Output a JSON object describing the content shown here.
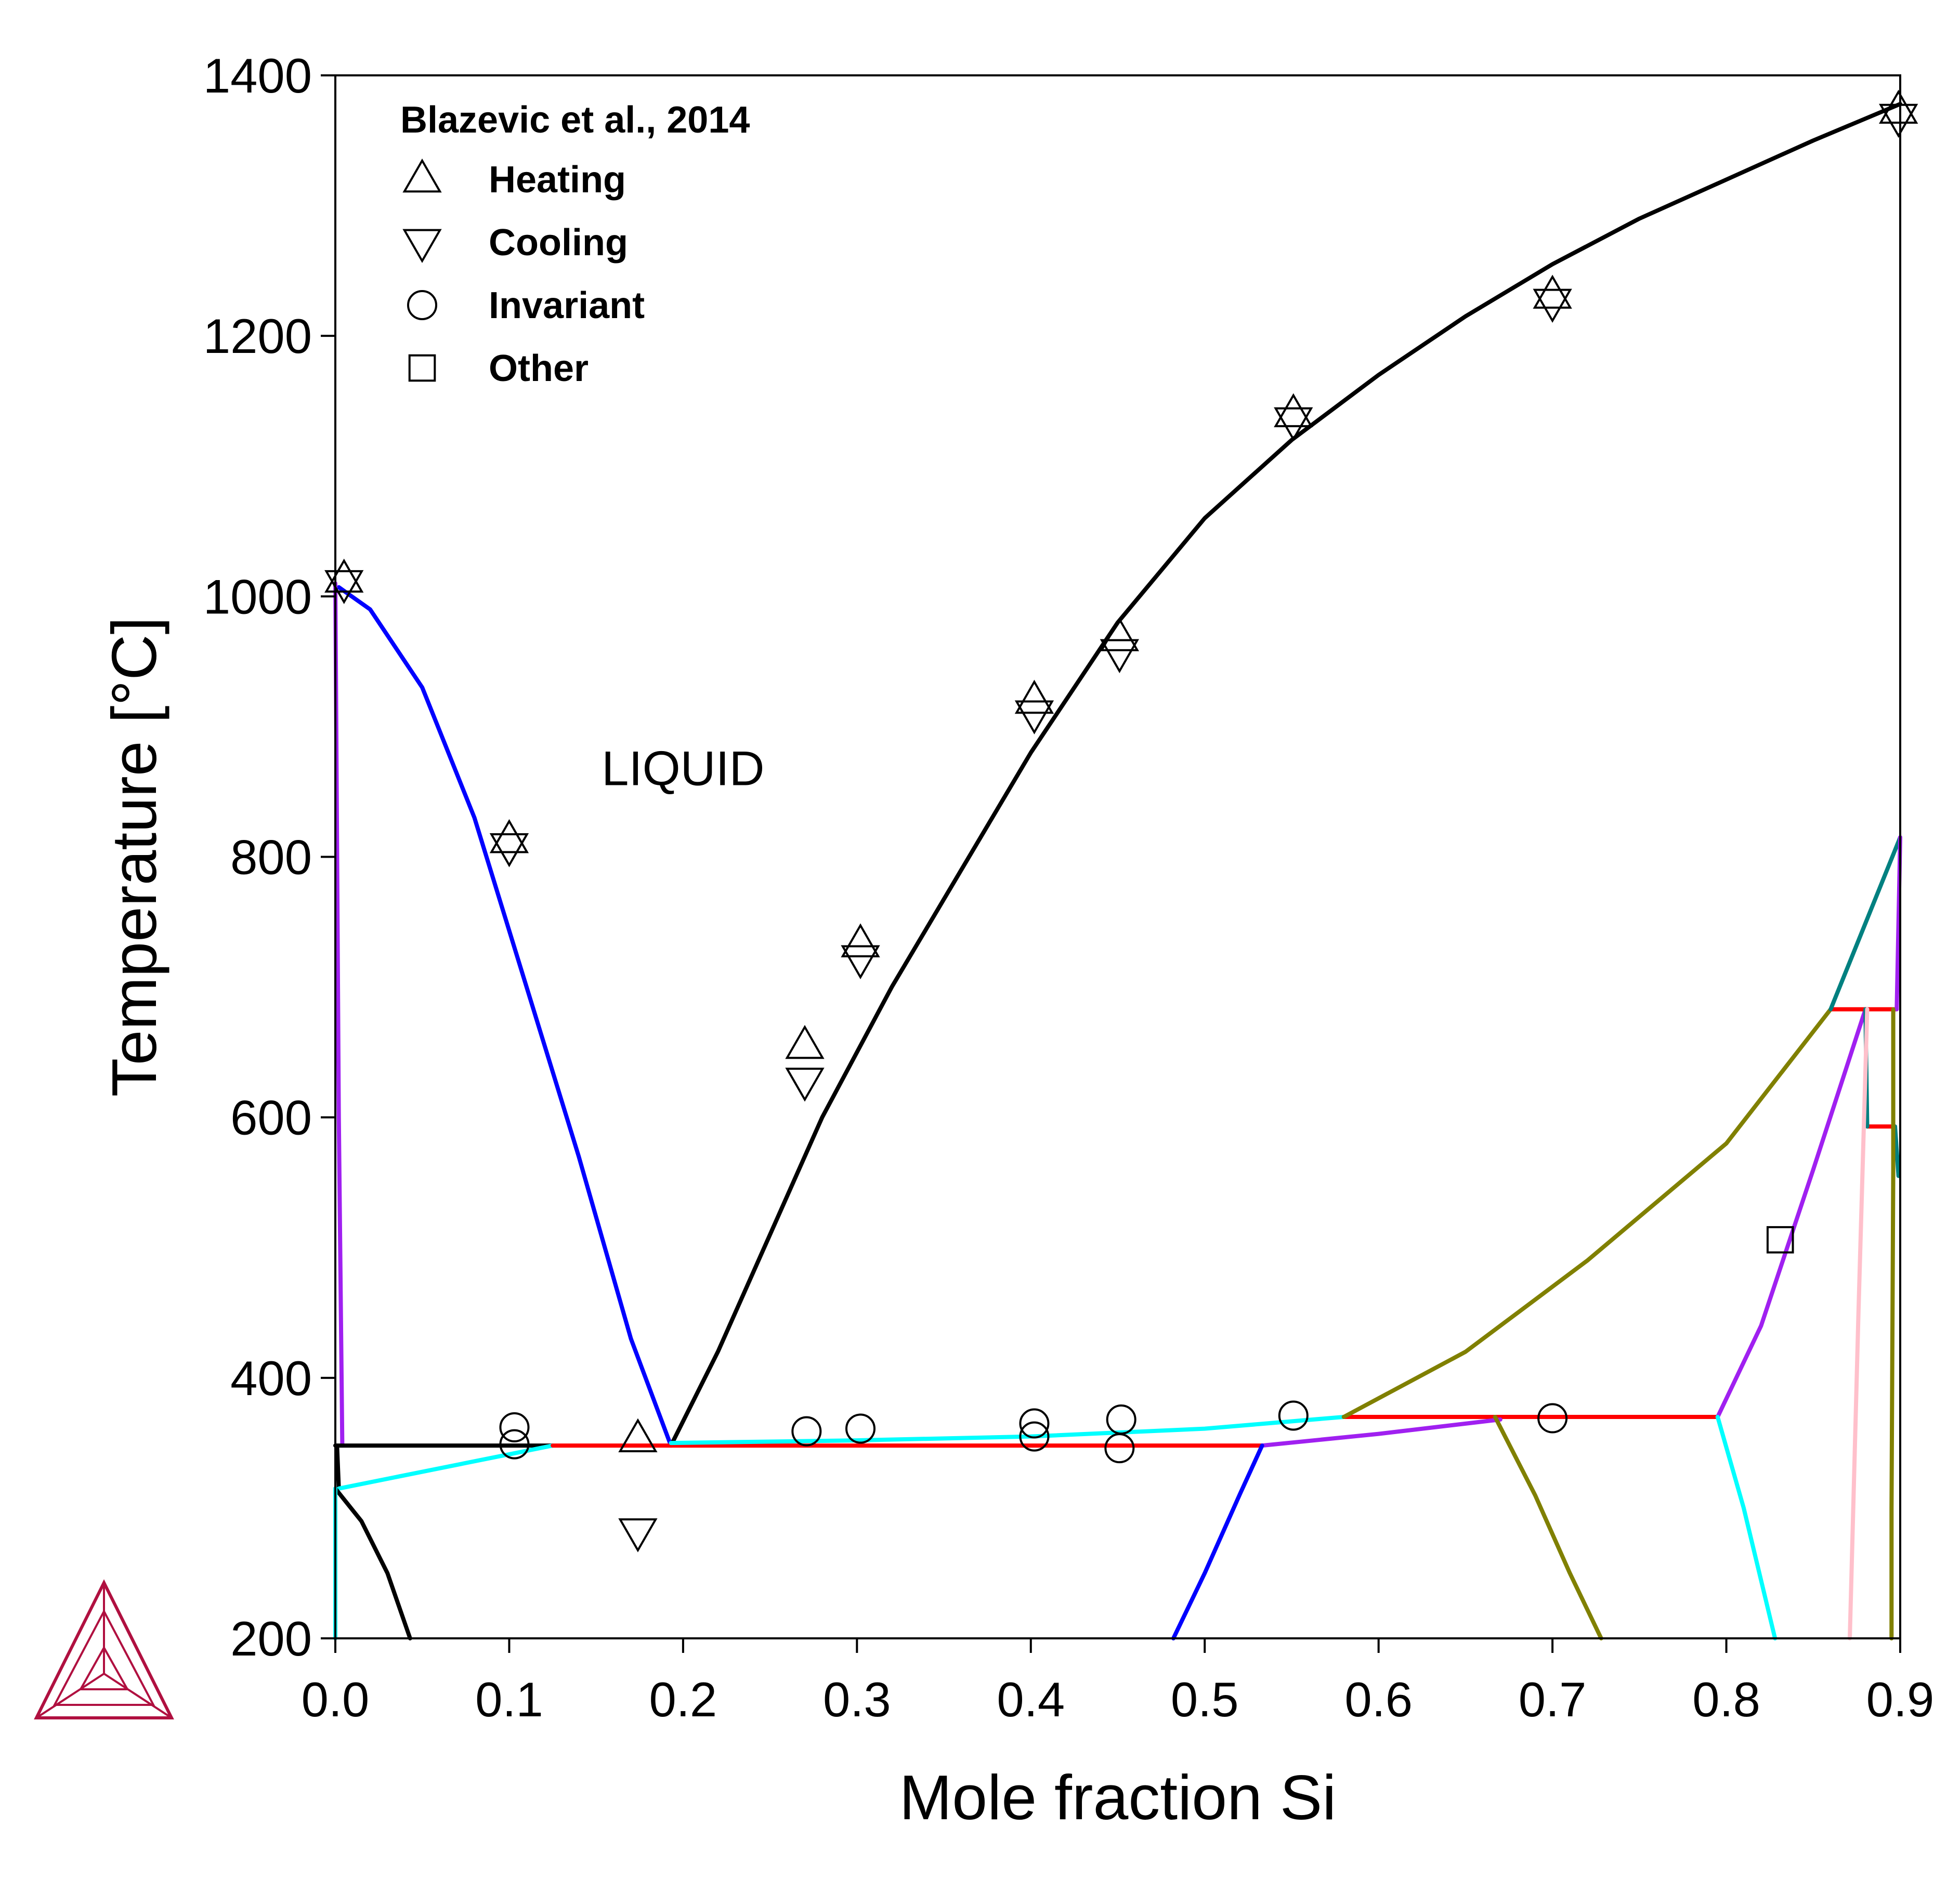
{
  "chart_data": {
    "type": "scatter",
    "xlabel": "Mole fraction Si",
    "ylabel": "Temperature [°C]",
    "xlim": [
      0.0,
      0.9
    ],
    "ylim": [
      200,
      1400
    ],
    "xticks": [
      "0.0",
      "0.1",
      "0.2",
      "0.3",
      "0.4",
      "0.5",
      "0.6",
      "0.7",
      "0.8",
      "0.9"
    ],
    "yticks": [
      "200",
      "400",
      "600",
      "800",
      "1000",
      "1200",
      "1400"
    ],
    "grid": false,
    "legend_position": "top-left",
    "legend": {
      "title": "Blazevic et al., 2014",
      "entries": [
        {
          "label": "Heating",
          "marker": "triangle-up"
        },
        {
          "label": "Cooling",
          "marker": "triangle-down"
        },
        {
          "label": "Invariant",
          "marker": "circle"
        },
        {
          "label": "Other",
          "marker": "square"
        }
      ]
    },
    "annotations": [
      {
        "text": "LIQUID",
        "x": 0.2,
        "y": 855
      }
    ],
    "series": [
      {
        "color": "#000000",
        "points": [
          [
            0.193,
            348
          ],
          [
            0.22,
            420
          ],
          [
            0.25,
            510
          ],
          [
            0.28,
            600
          ],
          [
            0.32,
            700
          ],
          [
            0.36,
            790
          ],
          [
            0.4,
            880
          ],
          [
            0.45,
            980
          ],
          [
            0.5,
            1060
          ],
          [
            0.55,
            1120
          ],
          [
            0.6,
            1170
          ],
          [
            0.65,
            1215
          ],
          [
            0.7,
            1255
          ],
          [
            0.75,
            1290
          ],
          [
            0.8,
            1320
          ],
          [
            0.85,
            1350
          ],
          [
            0.9,
            1378
          ]
        ]
      },
      {
        "color": "#0000ff",
        "points": [
          [
            0.002,
            1007
          ],
          [
            0.02,
            990
          ],
          [
            0.05,
            930
          ],
          [
            0.08,
            830
          ],
          [
            0.11,
            700
          ],
          [
            0.14,
            570
          ],
          [
            0.17,
            430
          ],
          [
            0.193,
            348
          ]
        ]
      },
      {
        "color": "#a020f0",
        "points": [
          [
            0.0,
            1010
          ],
          [
            0.002,
            600
          ],
          [
            0.004,
            348
          ]
        ]
      },
      {
        "color": "#000000",
        "points": [
          [
            0.0,
            348
          ],
          [
            0.125,
            348
          ]
        ]
      },
      {
        "color": "#000000",
        "points": [
          [
            0.001,
            348
          ],
          [
            0.002,
            315
          ]
        ]
      },
      {
        "color": "#00ffff",
        "points": [
          [
            0.002,
            315
          ],
          [
            0.125,
            348
          ]
        ]
      },
      {
        "color": "#ff0000",
        "points": [
          [
            0.125,
            348
          ],
          [
            0.533,
            348
          ]
        ]
      },
      {
        "color": "#00ffff",
        "points": [
          [
            0.193,
            350
          ],
          [
            0.3,
            352
          ],
          [
            0.4,
            355
          ],
          [
            0.5,
            361
          ],
          [
            0.58,
            370
          ]
        ]
      },
      {
        "color": "#ff0000",
        "points": [
          [
            0.58,
            370
          ],
          [
            0.795,
            370
          ]
        ]
      },
      {
        "color": "#a020f0",
        "points": [
          [
            0.533,
            348
          ],
          [
            0.6,
            357
          ],
          [
            0.67,
            368
          ]
        ]
      },
      {
        "color": "#000000",
        "points": [
          [
            0.0,
            315
          ],
          [
            0.015,
            290
          ],
          [
            0.03,
            250
          ],
          [
            0.043,
            200
          ]
        ]
      },
      {
        "color": "#00ffff",
        "points": [
          [
            0.0,
            315
          ],
          [
            0.0,
            200
          ]
        ]
      },
      {
        "color": "#0000ff",
        "points": [
          [
            0.533,
            348
          ],
          [
            0.52,
            310
          ],
          [
            0.5,
            250
          ],
          [
            0.482,
            200
          ]
        ]
      },
      {
        "color": "#808000",
        "points": [
          [
            0.58,
            370
          ],
          [
            0.65,
            420
          ],
          [
            0.72,
            490
          ],
          [
            0.8,
            580
          ],
          [
            0.86,
            683
          ]
        ]
      },
      {
        "color": "#808000",
        "points": [
          [
            0.667,
            370
          ],
          [
            0.69,
            310
          ],
          [
            0.71,
            250
          ],
          [
            0.728,
            200
          ]
        ]
      },
      {
        "color": "#a020f0",
        "points": [
          [
            0.795,
            370
          ],
          [
            0.82,
            440
          ],
          [
            0.85,
            560
          ],
          [
            0.88,
            683
          ]
        ]
      },
      {
        "color": "#00ffff",
        "points": [
          [
            0.795,
            370
          ],
          [
            0.81,
            300
          ],
          [
            0.828,
            200
          ]
        ]
      },
      {
        "color": "#ff0000",
        "points": [
          [
            0.86,
            683
          ],
          [
            0.898,
            683
          ]
        ]
      },
      {
        "color": "#ff0000",
        "points": [
          [
            0.881,
            593
          ],
          [
            0.897,
            593
          ]
        ]
      },
      {
        "color": "#008080",
        "points": [
          [
            0.86,
            683
          ],
          [
            0.9,
            815
          ]
        ]
      },
      {
        "color": "#008080",
        "points": [
          [
            0.88,
            683
          ],
          [
            0.881,
            593
          ]
        ]
      },
      {
        "color": "#a020f0",
        "points": [
          [
            0.898,
            683
          ],
          [
            0.9,
            815
          ]
        ]
      },
      {
        "color": "#008080",
        "points": [
          [
            0.897,
            593
          ],
          [
            0.899,
            555
          ]
        ]
      },
      {
        "color": "#808000",
        "points": [
          [
            0.896,
            683
          ],
          [
            0.896,
            560
          ],
          [
            0.895,
            300
          ],
          [
            0.895,
            200
          ]
        ]
      },
      {
        "color": "#ffc0cb",
        "points": [
          [
            0.881,
            683
          ],
          [
            0.876,
            450
          ],
          [
            0.871,
            200
          ]
        ]
      }
    ],
    "markers": {
      "heating": [
        [
          0.005,
          1013
        ],
        [
          0.1,
          813
        ],
        [
          0.174,
          353
        ],
        [
          0.27,
          655
        ],
        [
          0.302,
          733
        ],
        [
          0.402,
          920
        ],
        [
          0.451,
          968
        ],
        [
          0.551,
          1140
        ],
        [
          0.7,
          1231
        ],
        [
          0.899,
          1373
        ]
      ],
      "cooling": [
        [
          0.005,
          1010
        ],
        [
          0.1,
          808
        ],
        [
          0.174,
          282
        ],
        [
          0.27,
          628
        ],
        [
          0.302,
          722
        ],
        [
          0.402,
          910
        ],
        [
          0.451,
          957
        ],
        [
          0.551,
          1135
        ],
        [
          0.7,
          1226
        ],
        [
          0.899,
          1368
        ]
      ],
      "invariant": [
        [
          0.103,
          362
        ],
        [
          0.103,
          349
        ],
        [
          0.271,
          359
        ],
        [
          0.302,
          361
        ],
        [
          0.402,
          365
        ],
        [
          0.402,
          355
        ],
        [
          0.452,
          368
        ],
        [
          0.451,
          346
        ],
        [
          0.551,
          371
        ],
        [
          0.7,
          369
        ]
      ],
      "other": [
        [
          0.831,
          506
        ]
      ]
    }
  }
}
